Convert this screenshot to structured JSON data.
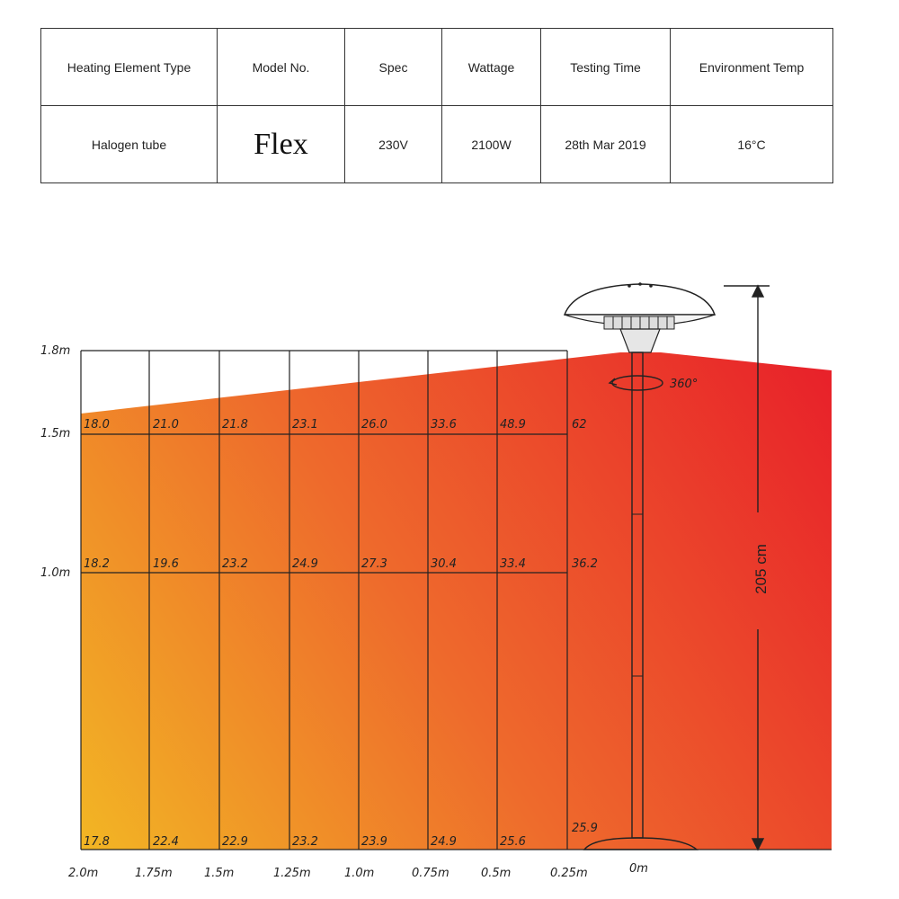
{
  "spec_table": {
    "headers": [
      "Heating Element Type",
      "Model No.",
      "Spec",
      "Wattage",
      "Testing Time",
      "Environment Temp"
    ],
    "values": [
      "Halogen tube",
      "Flex",
      "230V",
      "2100W",
      "28th Mar 2019",
      "16°C"
    ]
  },
  "diagram": {
    "height_labels": [
      "1.8m",
      "1.5m",
      "1.0m"
    ],
    "distance_labels": [
      "2.0m",
      "1.75m",
      "1.5m",
      "1.25m",
      "1.0m",
      "0.75m",
      "0.5m",
      "0.25m",
      "0m"
    ],
    "rows": [
      {
        "height": "1.5m",
        "values": [
          "18.0",
          "21.0",
          "21.8",
          "23.1",
          "26.0",
          "33.6",
          "48.9",
          "62"
        ]
      },
      {
        "height": "1.0m",
        "values": [
          "18.2",
          "19.6",
          "23.2",
          "24.9",
          "27.3",
          "30.4",
          "33.4",
          "36.2"
        ]
      },
      {
        "height": "0m",
        "values": [
          "17.8",
          "22.4",
          "22.9",
          "23.2",
          "23.9",
          "24.9",
          "25.6",
          "25.9"
        ]
      }
    ],
    "rotation_label": "360°",
    "heater_height_label": "205 cm",
    "colors": {
      "hot": "#e8202a",
      "warm": "#ee6a2c",
      "cool": "#f2b624",
      "grid": "#222222"
    }
  }
}
